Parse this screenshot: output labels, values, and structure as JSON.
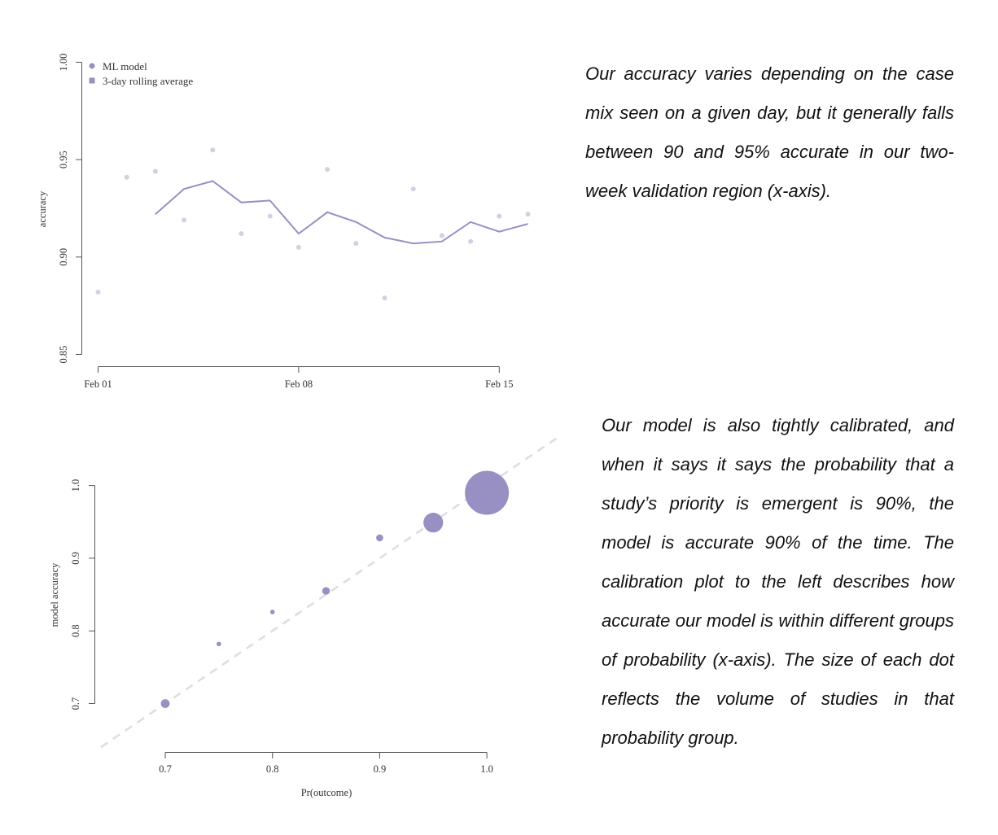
{
  "chart_data": [
    {
      "type": "line",
      "title": "",
      "xlabel": "",
      "ylabel": "accuracy",
      "ylim": [
        0.85,
        1.0
      ],
      "yticks": [
        "0.85",
        "0.90",
        "0.95",
        "1.00"
      ],
      "xticks": [
        {
          "date": "2020-02-01",
          "label": "Feb 01"
        },
        {
          "date": "2020-02-08",
          "label": "Feb 08"
        },
        {
          "date": "2020-02-15",
          "label": "Feb 15"
        }
      ],
      "legend": {
        "position": "top-left",
        "entries": [
          {
            "label": "ML model",
            "marker": "circle"
          },
          {
            "label": "3-day rolling average",
            "marker": "square"
          }
        ]
      },
      "series": [
        {
          "name": "ML model",
          "kind": "points",
          "color": "#d3d0e2",
          "points": [
            {
              "x": "2020-02-01",
              "y": 0.882
            },
            {
              "x": "2020-02-02",
              "y": 0.941
            },
            {
              "x": "2020-02-03",
              "y": 0.944
            },
            {
              "x": "2020-02-04",
              "y": 0.919
            },
            {
              "x": "2020-02-05",
              "y": 0.955
            },
            {
              "x": "2020-02-06",
              "y": 0.912
            },
            {
              "x": "2020-02-07",
              "y": 0.921
            },
            {
              "x": "2020-02-08",
              "y": 0.905
            },
            {
              "x": "2020-02-09",
              "y": 0.945
            },
            {
              "x": "2020-02-10",
              "y": 0.907
            },
            {
              "x": "2020-02-11",
              "y": 0.879
            },
            {
              "x": "2020-02-12",
              "y": 0.935
            },
            {
              "x": "2020-02-13",
              "y": 0.911
            },
            {
              "x": "2020-02-14",
              "y": 0.908
            },
            {
              "x": "2020-02-15",
              "y": 0.921
            },
            {
              "x": "2020-02-16",
              "y": 0.922
            }
          ]
        },
        {
          "name": "3-day rolling average",
          "kind": "line",
          "color": "#9890c3",
          "points": [
            {
              "x": "2020-02-03",
              "y": 0.922
            },
            {
              "x": "2020-02-04",
              "y": 0.935
            },
            {
              "x": "2020-02-05",
              "y": 0.939
            },
            {
              "x": "2020-02-06",
              "y": 0.928
            },
            {
              "x": "2020-02-07",
              "y": 0.929
            },
            {
              "x": "2020-02-08",
              "y": 0.912
            },
            {
              "x": "2020-02-09",
              "y": 0.923
            },
            {
              "x": "2020-02-10",
              "y": 0.918
            },
            {
              "x": "2020-02-11",
              "y": 0.91
            },
            {
              "x": "2020-02-12",
              "y": 0.907
            },
            {
              "x": "2020-02-13",
              "y": 0.908
            },
            {
              "x": "2020-02-14",
              "y": 0.918
            },
            {
              "x": "2020-02-15",
              "y": 0.913
            },
            {
              "x": "2020-02-16",
              "y": 0.917
            }
          ]
        }
      ]
    },
    {
      "type": "scatter",
      "title": "",
      "xlabel": "Pr(outcome)",
      "ylabel": "model accuracy",
      "xlim": [
        0.7,
        1.0
      ],
      "ylim": [
        0.7,
        1.0
      ],
      "xticks": [
        "0.7",
        "0.8",
        "0.9",
        "1.0"
      ],
      "yticks": [
        "0.7",
        "0.8",
        "0.9",
        "1.0"
      ],
      "reference_line": {
        "type": "identity",
        "style": "dashed",
        "color": "#dcdce4"
      },
      "marker_color": "#9890c3",
      "points": [
        {
          "x": 0.7,
          "y": 0.7,
          "volume": 0.04
        },
        {
          "x": 0.75,
          "y": 0.782,
          "volume": 0.005
        },
        {
          "x": 0.8,
          "y": 0.826,
          "volume": 0.004
        },
        {
          "x": 0.85,
          "y": 0.855,
          "volume": 0.03
        },
        {
          "x": 0.9,
          "y": 0.928,
          "volume": 0.025
        },
        {
          "x": 0.95,
          "y": 0.949,
          "volume": 0.2
        },
        {
          "x": 1.0,
          "y": 0.99,
          "volume": 1.0
        }
      ]
    }
  ],
  "notes": {
    "top": "Our accuracy varies depending on the case mix seen on a given day, but it generally falls between 90 and 95% accurate in our two-week validation region (x-axis).",
    "bottom": "Our model is also tightly calibrated, and when it says it says the probability that a study’s priority is emergent is 90%, the model is accurate 90% of the time.  The calibration plot to the left describes how accurate our model is within different groups of probability (x-axis).  The size of each dot reflects the volume of studies in that probability group."
  }
}
